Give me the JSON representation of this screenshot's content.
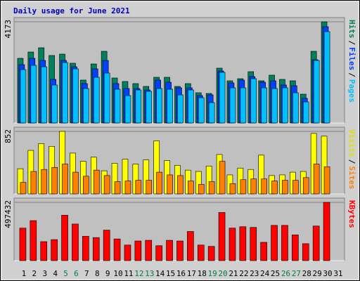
{
  "title": "Daily usage for June 2021",
  "chart_data": [
    {
      "type": "bar",
      "ylim": [
        0,
        4173
      ],
      "yticks": [
        4173
      ],
      "legend_separator": "/",
      "series": [
        {
          "name": "Hits",
          "color": "#00805c",
          "values": [
            2666,
            2927,
            3101,
            2782,
            2840,
            2463,
            1768,
            2434,
            2956,
            1855,
            1710,
            1623,
            1507,
            1884,
            1884,
            1507,
            1623,
            1246,
            1217,
            2260,
            1739,
            1826,
            2115,
            1739,
            1971,
            1797,
            1739,
            1188,
            2956,
            4173,
            null
          ]
        },
        {
          "name": "Files",
          "color": "#0040ff",
          "values": [
            2405,
            2666,
            2579,
            1797,
            2579,
            2318,
            1623,
            2231,
            2579,
            1623,
            1420,
            1420,
            1362,
            1768,
            1681,
            1449,
            1449,
            1130,
            1159,
            2145,
            1652,
            1768,
            1913,
            1681,
            1739,
            1565,
            1536,
            1014,
            2608,
            3970,
            null
          ]
        },
        {
          "name": "Pages",
          "color": "#00c0ff",
          "values": [
            2202,
            2376,
            2318,
            1565,
            2492,
            2231,
            1420,
            1884,
            2058,
            1391,
            1130,
            1362,
            1304,
            1420,
            1391,
            1159,
            1362,
            1043,
            840,
            2087,
            1449,
            1449,
            1826,
            1449,
            1420,
            1449,
            1246,
            869,
            2579,
            3767,
            null
          ]
        }
      ]
    },
    {
      "type": "bar",
      "ylim": [
        0,
        852
      ],
      "yticks": [
        852
      ],
      "legend_separator": "/",
      "series": [
        {
          "name": "Visits",
          "color": "#ffff00",
          "values": [
            343,
            593,
            685,
            648,
            852,
            556,
            444,
            500,
            315,
            417,
            472,
            407,
            463,
            722,
            454,
            389,
            324,
            306,
            380,
            537,
            259,
            352,
            333,
            528,
            250,
            259,
            296,
            306,
            824,
            787,
            null
          ]
        },
        {
          "name": "Sites",
          "color": "#ff8000",
          "values": [
            157,
            306,
            333,
            361,
            407,
            296,
            241,
            324,
            250,
            167,
            176,
            185,
            185,
            296,
            259,
            250,
            176,
            130,
            167,
            444,
            139,
            194,
            204,
            204,
            176,
            185,
            185,
            222,
            407,
            370,
            null
          ]
        }
      ]
    },
    {
      "type": "bar",
      "ylim": [
        0,
        497432
      ],
      "yticks": [
        497432
      ],
      "categories": [
        "1",
        "2",
        "3",
        "4",
        "5",
        "6",
        "7",
        "8",
        "9",
        "10",
        "11",
        "12",
        "13",
        "14",
        "15",
        "16",
        "17",
        "18",
        "19",
        "20",
        "21",
        "22",
        "23",
        "24",
        "25",
        "26",
        "27",
        "28",
        "29",
        "30",
        "31"
      ],
      "category_colors": [
        "#000000",
        "#000000",
        "#000000",
        "#000000",
        "#008040",
        "#008040",
        "#000000",
        "#000000",
        "#000000",
        "#000000",
        "#000000",
        "#008040",
        "#008040",
        "#000000",
        "#000000",
        "#000000",
        "#000000",
        "#000000",
        "#008040",
        "#008040",
        "#000000",
        "#000000",
        "#000000",
        "#000000",
        "#000000",
        "#008040",
        "#008040",
        "#000000",
        "#000000",
        "#000000",
        "#000000"
      ],
      "series": [
        {
          "name": "KBytes",
          "color": "#ff0000",
          "values": [
            277600,
            341300,
            162000,
            179300,
            387500,
            312300,
            208200,
            196700,
            260300,
            185100,
            133000,
            167700,
            173500,
            127300,
            173500,
            167700,
            248700,
            133000,
            121500,
            410700,
            277600,
            289200,
            283400,
            156200,
            300800,
            300800,
            219800,
            144600,
            295000,
            497432,
            null
          ]
        }
      ]
    }
  ]
}
